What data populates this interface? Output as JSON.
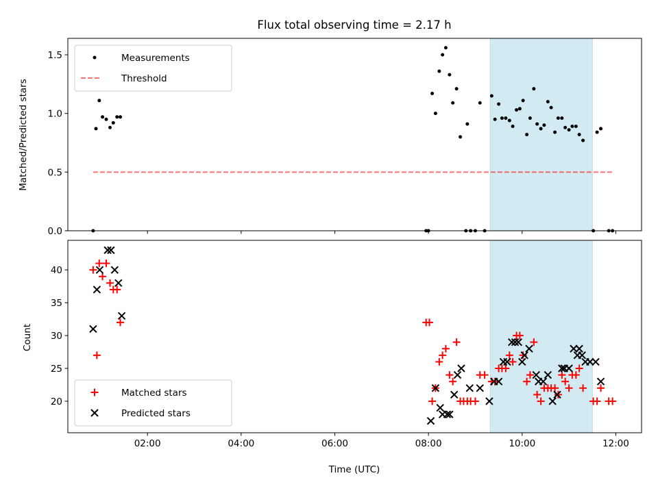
{
  "chart_data": {
    "title": "Flux total observing time = 2.17 h",
    "type": "scatter",
    "x_unit": "hours (UTC)",
    "xlabel": "Time (UTC)",
    "xlim": [
      0.3,
      12.55
    ],
    "x_ticks": [
      {
        "value": 2,
        "label": "02:00"
      },
      {
        "value": 4,
        "label": "04:00"
      },
      {
        "value": 6,
        "label": "06:00"
      },
      {
        "value": 8,
        "label": "08:00"
      },
      {
        "value": 10,
        "label": "10:00"
      },
      {
        "value": 12,
        "label": "12:00"
      }
    ],
    "highlight_span": {
      "x_start": 9.32,
      "x_end": 11.5,
      "color": "#add8e6"
    },
    "panels": [
      {
        "ylabel": "Matched/Predicted stars",
        "ylim": [
          0,
          1.64
        ],
        "y_ticks": [
          {
            "value": 0,
            "label": "0.0"
          },
          {
            "value": 0.5,
            "label": "0.5"
          },
          {
            "value": 1.0,
            "label": "1.0"
          },
          {
            "value": 1.5,
            "label": "1.5"
          }
        ],
        "legend_position": "top-left",
        "series": [
          {
            "name": "Measurements",
            "kind": "scatter",
            "marker": "dot",
            "color": "#000000",
            "points": [
              [
                0.84,
                0.0
              ],
              [
                0.9,
                0.87
              ],
              [
                0.97,
                1.11
              ],
              [
                1.04,
                0.97
              ],
              [
                1.12,
                0.95
              ],
              [
                1.2,
                0.88
              ],
              [
                1.27,
                0.92
              ],
              [
                1.35,
                0.97
              ],
              [
                1.42,
                0.97
              ],
              [
                7.95,
                0.0
              ],
              [
                8.0,
                0.0
              ],
              [
                8.08,
                1.17
              ],
              [
                8.15,
                1.0
              ],
              [
                8.23,
                1.36
              ],
              [
                8.3,
                1.5
              ],
              [
                8.37,
                1.56
              ],
              [
                8.45,
                1.33
              ],
              [
                8.52,
                1.09
              ],
              [
                8.6,
                1.21
              ],
              [
                8.68,
                0.8
              ],
              [
                8.8,
                0.0
              ],
              [
                8.83,
                0.91
              ],
              [
                8.9,
                0.0
              ],
              [
                9.0,
                0.0
              ],
              [
                9.1,
                1.09
              ],
              [
                9.2,
                0.0
              ],
              [
                9.35,
                1.15
              ],
              [
                9.42,
                0.95
              ],
              [
                9.5,
                1.08
              ],
              [
                9.57,
                0.96
              ],
              [
                9.65,
                0.96
              ],
              [
                9.73,
                0.94
              ],
              [
                9.8,
                0.89
              ],
              [
                9.88,
                1.03
              ],
              [
                9.95,
                1.04
              ],
              [
                10.02,
                1.11
              ],
              [
                10.1,
                0.82
              ],
              [
                10.17,
                0.96
              ],
              [
                10.25,
                1.21
              ],
              [
                10.32,
                0.91
              ],
              [
                10.4,
                0.87
              ],
              [
                10.47,
                0.9
              ],
              [
                10.55,
                1.1
              ],
              [
                10.62,
                1.05
              ],
              [
                10.7,
                0.84
              ],
              [
                10.77,
                0.96
              ],
              [
                10.85,
                0.96
              ],
              [
                10.92,
                0.88
              ],
              [
                11.0,
                0.86
              ],
              [
                11.07,
                0.89
              ],
              [
                11.15,
                0.89
              ],
              [
                11.22,
                0.82
              ],
              [
                11.3,
                0.77
              ],
              [
                11.52,
                0.0
              ],
              [
                11.6,
                0.84
              ],
              [
                11.68,
                0.87
              ],
              [
                11.85,
                0.0
              ],
              [
                11.93,
                0.0
              ]
            ]
          },
          {
            "name": "Threshold",
            "kind": "line",
            "style": "dashed",
            "color": "#ff0000",
            "opacity": 0.55,
            "points": [
              [
                0.84,
                0.5
              ],
              [
                11.93,
                0.5
              ]
            ]
          }
        ]
      },
      {
        "ylabel": "Count",
        "ylim": [
          15.2,
          44.5
        ],
        "y_ticks": [
          {
            "value": 20,
            "label": "20"
          },
          {
            "value": 25,
            "label": "25"
          },
          {
            "value": 30,
            "label": "30"
          },
          {
            "value": 35,
            "label": "35"
          },
          {
            "value": 40,
            "label": "40"
          }
        ],
        "legend_position": "bottom-left",
        "series": [
          {
            "name": "Matched stars",
            "kind": "scatter",
            "marker": "plus",
            "color": "#ff0000",
            "points": [
              [
                0.84,
                40
              ],
              [
                0.92,
                27
              ],
              [
                0.97,
                41
              ],
              [
                1.04,
                39
              ],
              [
                1.12,
                41
              ],
              [
                1.2,
                38
              ],
              [
                1.27,
                37
              ],
              [
                1.35,
                37
              ],
              [
                1.42,
                32
              ],
              [
                7.95,
                32
              ],
              [
                8.02,
                32
              ],
              [
                8.08,
                20
              ],
              [
                8.15,
                22
              ],
              [
                8.23,
                26
              ],
              [
                8.3,
                27
              ],
              [
                8.37,
                28
              ],
              [
                8.45,
                24
              ],
              [
                8.52,
                23
              ],
              [
                8.6,
                29
              ],
              [
                8.68,
                20
              ],
              [
                8.75,
                20
              ],
              [
                8.83,
                20
              ],
              [
                8.9,
                20
              ],
              [
                9.0,
                20
              ],
              [
                9.1,
                24
              ],
              [
                9.2,
                24
              ],
              [
                9.35,
                23
              ],
              [
                9.42,
                23
              ],
              [
                9.5,
                25
              ],
              [
                9.57,
                25
              ],
              [
                9.65,
                25
              ],
              [
                9.73,
                27
              ],
              [
                9.8,
                26
              ],
              [
                9.88,
                30
              ],
              [
                9.95,
                30
              ],
              [
                10.02,
                27
              ],
              [
                10.1,
                23
              ],
              [
                10.17,
                24
              ],
              [
                10.25,
                29
              ],
              [
                10.32,
                21
              ],
              [
                10.4,
                20
              ],
              [
                10.47,
                22
              ],
              [
                10.55,
                22
              ],
              [
                10.62,
                22
              ],
              [
                10.7,
                22
              ],
              [
                10.77,
                21
              ],
              [
                10.85,
                24
              ],
              [
                10.92,
                23
              ],
              [
                11.0,
                22
              ],
              [
                11.07,
                24
              ],
              [
                11.15,
                24
              ],
              [
                11.22,
                25
              ],
              [
                11.3,
                22
              ],
              [
                11.52,
                20
              ],
              [
                11.6,
                20
              ],
              [
                11.68,
                22
              ],
              [
                11.85,
                20
              ],
              [
                11.93,
                20
              ]
            ]
          },
          {
            "name": "Predicted stars",
            "kind": "scatter",
            "marker": "x",
            "color": "#000000",
            "points": [
              [
                0.84,
                31
              ],
              [
                0.92,
                37
              ],
              [
                0.98,
                40
              ],
              [
                1.15,
                43
              ],
              [
                1.22,
                43
              ],
              [
                1.3,
                40
              ],
              [
                1.38,
                38
              ],
              [
                1.45,
                33
              ],
              [
                8.05,
                17
              ],
              [
                8.15,
                22
              ],
              [
                8.25,
                19
              ],
              [
                8.3,
                18
              ],
              [
                8.4,
                18
              ],
              [
                8.45,
                18
              ],
              [
                8.55,
                21
              ],
              [
                8.62,
                24
              ],
              [
                8.7,
                25
              ],
              [
                8.88,
                22
              ],
              [
                9.1,
                22
              ],
              [
                9.3,
                20
              ],
              [
                9.4,
                23
              ],
              [
                9.5,
                23
              ],
              [
                9.6,
                26
              ],
              [
                9.68,
                26
              ],
              [
                9.78,
                29
              ],
              [
                9.85,
                29
              ],
              [
                9.92,
                29
              ],
              [
                10.0,
                26
              ],
              [
                10.05,
                27
              ],
              [
                10.15,
                28
              ],
              [
                10.3,
                24
              ],
              [
                10.35,
                23
              ],
              [
                10.45,
                23
              ],
              [
                10.55,
                24
              ],
              [
                10.65,
                20
              ],
              [
                10.75,
                21
              ],
              [
                10.85,
                25
              ],
              [
                10.9,
                25
              ],
              [
                11.0,
                25
              ],
              [
                11.1,
                28
              ],
              [
                11.18,
                27
              ],
              [
                11.22,
                28
              ],
              [
                11.28,
                27
              ],
              [
                11.35,
                26
              ],
              [
                11.45,
                26
              ],
              [
                11.57,
                26
              ],
              [
                11.68,
                23
              ]
            ]
          }
        ]
      }
    ]
  }
}
